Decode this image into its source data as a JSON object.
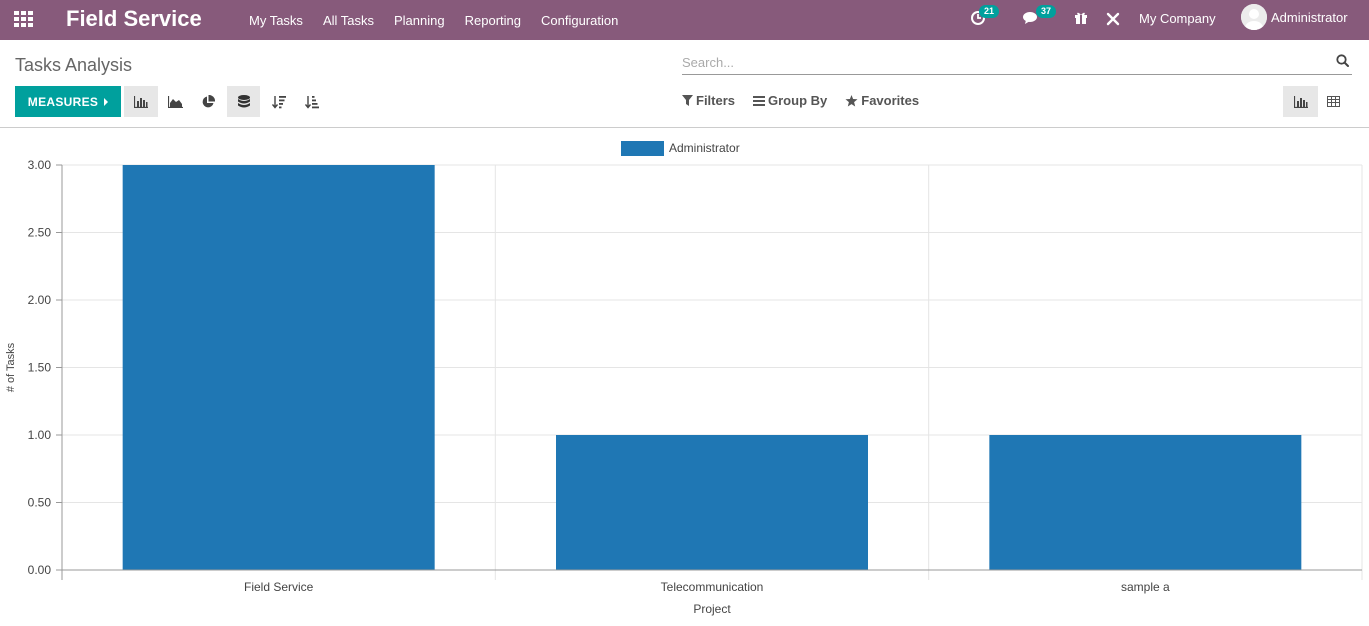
{
  "navbar": {
    "app_title": "Field Service",
    "menu": [
      "My Tasks",
      "All Tasks",
      "Planning",
      "Reporting",
      "Configuration"
    ],
    "activity_count": "21",
    "messages_count": "37",
    "company": "My Company",
    "user": "Administrator"
  },
  "control_panel": {
    "title": "Tasks Analysis",
    "search_placeholder": "Search...",
    "measures_label": "MEASURES",
    "filters_label": "Filters",
    "group_by_label": "Group By",
    "favorites_label": "Favorites"
  },
  "colors": {
    "navbar": "#875a7b",
    "primary": "#00a09d",
    "bar": "#1f77b4"
  },
  "chart_data": {
    "type": "bar",
    "categories": [
      "Field Service",
      "Telecommunication",
      "sample a"
    ],
    "series": [
      {
        "name": "Administrator",
        "values": [
          3,
          1,
          1
        ]
      }
    ],
    "xlabel": "Project",
    "ylabel": "# of Tasks",
    "ylim": [
      0,
      3
    ],
    "yticks": [
      "0.00",
      "0.50",
      "1.00",
      "1.50",
      "2.00",
      "2.50",
      "3.00"
    ],
    "grid": true,
    "legend": "top-center"
  }
}
